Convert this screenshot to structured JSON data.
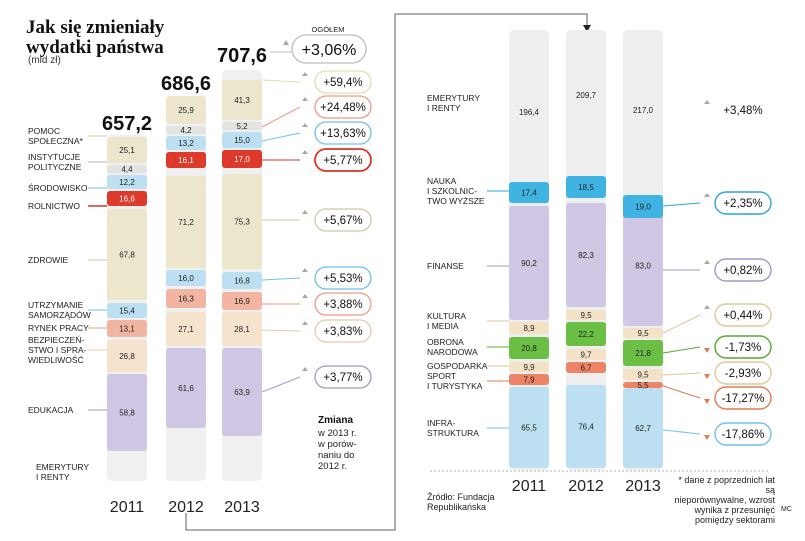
{
  "header": {
    "title_line1": "Jak się zmieniały",
    "title_line2": "wydatki państwa",
    "unit": "(mld zł)"
  },
  "colors": {
    "beige": "#ebe6cc",
    "blue_light": "#bcdff2",
    "red": "#dd3a2c",
    "lilac": "#cfc7e4",
    "pink": "#f1b5a2",
    "peach": "#f6e3cd",
    "cyan": "#3fb4e3",
    "green": "#6cbf45",
    "salmon": "#ee8466",
    "tan": "#f4e2c7",
    "grey": "#e3e3e3",
    "gray_arrow": "#a9a9a9",
    "down_arrow": "#e07b52"
  },
  "chart_data": [
    {
      "type": "stacked-bar",
      "title": "Jak się zmieniały wydatki państwa",
      "unit": "mld zł",
      "years": [
        "2011",
        "2012",
        "2013"
      ],
      "totals": [
        "657,2",
        "686,6",
        "707,6"
      ],
      "total_change": {
        "label": "OGÓŁEM",
        "value": "+3,06%"
      },
      "categories": [
        {
          "name": "EMERYTURY I RENTY",
          "label_lines": [
            "EMERYTURY",
            "I RENTY"
          ],
          "values": [
            "",
            "",
            ""
          ],
          "change": ""
        },
        {
          "name": "EDUKACJA",
          "label_lines": [
            "EDUKACJA"
          ],
          "values": [
            "58,8",
            "61,6",
            "63,9"
          ],
          "change": "+3,77%"
        },
        {
          "name": "BEZPIECZEŃSTWO I SPRAWIEDLIWOŚĆ",
          "label_lines": [
            "BEZPIECZEŃ-",
            "STWO I SPRA-",
            "WIEDLIWOŚĆ"
          ],
          "values": [
            "26,8",
            "27,1",
            "28,1"
          ],
          "change": "+3,83%"
        },
        {
          "name": "RYNEK PRACY",
          "label_lines": [
            "RYNEK PRACY"
          ],
          "values": [
            "13,1",
            "16,3",
            "16,9"
          ],
          "change": "+3,88%"
        },
        {
          "name": "UTRZYMANIE SAMORZĄDÓW",
          "label_lines": [
            "UTRZYMANIE",
            "SAMORZĄDÓW"
          ],
          "values": [
            "15,4",
            "16,0",
            "16,8"
          ],
          "change": "+5,53%"
        },
        {
          "name": "ZDROWIE",
          "label_lines": [
            "ZDROWIE"
          ],
          "values": [
            "67,8",
            "71,2",
            "75,3"
          ],
          "change": "+5,67%"
        },
        {
          "name": "ROLNICTWO",
          "label_lines": [
            "ROLNICTWO"
          ],
          "values": [
            "16,6",
            "16,1",
            "17,0"
          ],
          "change": "+5,77%"
        },
        {
          "name": "ŚRODOWISKO",
          "label_lines": [
            "ŚRODOWISKO"
          ],
          "values": [
            "12,2",
            "13,2",
            "15,0"
          ],
          "change": "+13,63%"
        },
        {
          "name": "INSTYTUCJE POLITYCZNE",
          "label_lines": [
            "INSTYTUCJE",
            "POLITYCZNE"
          ],
          "values": [
            "4,4",
            "4,2",
            "5,2"
          ],
          "change": "+24,48%"
        },
        {
          "name": "POMOC SPOŁECZNA*",
          "label_lines": [
            "POMOC",
            "SPOŁECZNA*"
          ],
          "values": [
            "25,1",
            "25,9",
            "41,3"
          ],
          "change": "+59,4%"
        }
      ],
      "change_caption": {
        "bold": "Zmiana",
        "lines": [
          "w 2013 r.",
          "w porów-",
          "naniu do",
          "2012 r."
        ]
      }
    },
    {
      "type": "stacked-bar",
      "unit": "mld zł",
      "years": [
        "2011",
        "2012",
        "2013"
      ],
      "categories": [
        {
          "name": "INFRASTRUKTURA",
          "label_lines": [
            "INFRA-",
            "STRUKTURA"
          ],
          "values": [
            "65,5",
            "76,4",
            "62,7"
          ],
          "change": "-17,86%"
        },
        {
          "name": "SPORT I TURYSTYKA",
          "label_lines": [
            "SPORT",
            "I TURYSTYKA"
          ],
          "values": [
            "7,9",
            "6,7",
            "5,5"
          ],
          "change": "-17,27%"
        },
        {
          "name": "GOSPODARKA",
          "label_lines": [
            "GOSPODARKA"
          ],
          "values": [
            "9,9",
            "9,7",
            "9,5"
          ],
          "change": "-2,93%"
        },
        {
          "name": "OBRONA NARODOWA",
          "label_lines": [
            "OBRONA",
            "NARODOWA"
          ],
          "values": [
            "20,8",
            "22,2",
            "21,8"
          ],
          "change": "-1,73%"
        },
        {
          "name": "KULTURA I MEDIA",
          "label_lines": [
            "KULTURA",
            "I MEDIA"
          ],
          "values": [
            "8,9",
            "9,5",
            "9,5"
          ],
          "change": "+0,44%"
        },
        {
          "name": "FINANSE",
          "label_lines": [
            "FINANSE"
          ],
          "values": [
            "90,2",
            "82,3",
            "83,0"
          ],
          "change": "+0,82%"
        },
        {
          "name": "NAUKA I SZKOLNICTWO WYŻSZE",
          "label_lines": [
            "NAUKA",
            "I SZKOLNIC-",
            "TWO WYŻSZE"
          ],
          "values": [
            "17,4",
            "18,5",
            "19,0"
          ],
          "change": "+2,35%"
        },
        {
          "name": "EMERYTURY I RENTY",
          "label_lines": [
            "EMERYTURY",
            "I RENTY"
          ],
          "values": [
            "196,4",
            "209,7",
            "217,0"
          ],
          "change": "+3,48%"
        }
      ]
    }
  ],
  "footer": {
    "source": [
      "Źródło: Fundacja",
      "Republikańska"
    ],
    "footnote": [
      "* dane z poprzednich lat są",
      "nieporównywalne, wzrost",
      "wynika z przesunięć",
      "pomiędzy sektorami"
    ],
    "credit": "MC"
  }
}
